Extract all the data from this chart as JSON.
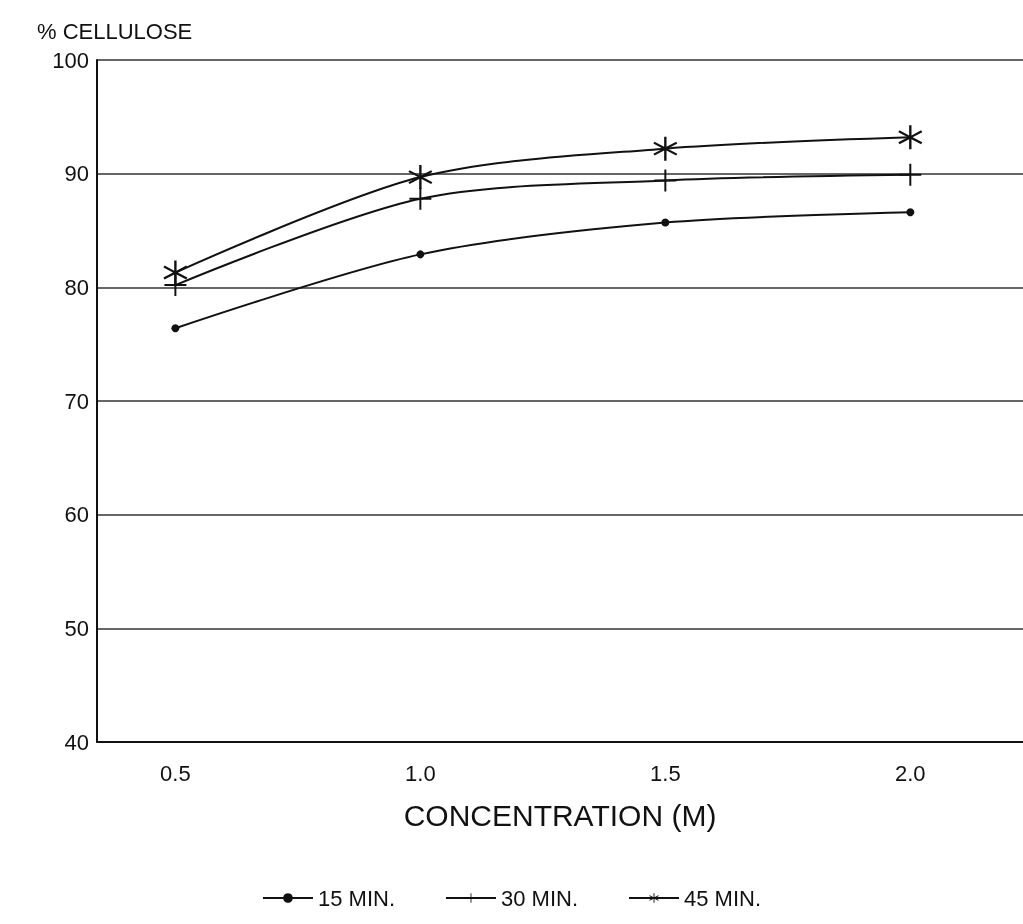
{
  "chart_data": {
    "type": "line",
    "ylabel": "% CELLULOSE",
    "xlabel": "CONCENTRATION (M)",
    "x": [
      0.5,
      1.0,
      1.5,
      2.0
    ],
    "series": [
      {
        "name": "15 MIN.",
        "color": "#111111",
        "marker": "circle",
        "values": [
          76.4,
          82.9,
          85.7,
          86.6
        ]
      },
      {
        "name": "30 MIN.",
        "color": "#111111",
        "marker": "cross",
        "values": [
          80.2,
          87.8,
          89.4,
          89.9
        ]
      },
      {
        "name": "45 MIN.",
        "color": "#111111",
        "marker": "star",
        "values": [
          81.3,
          89.7,
          92.2,
          93.2
        ]
      }
    ],
    "xlim": [
      0.34,
      2.23
    ],
    "xticks": [
      0.5,
      {
        "value": 1.0,
        "label": "1.0"
      },
      1.5,
      {
        "value": 2.0,
        "label": "2.0"
      }
    ],
    "ylim": [
      40,
      100
    ],
    "yticks": [
      40,
      50,
      60,
      70,
      80,
      90,
      100
    ],
    "grid": "y",
    "legend": "bottom",
    "line_style": "solid"
  }
}
